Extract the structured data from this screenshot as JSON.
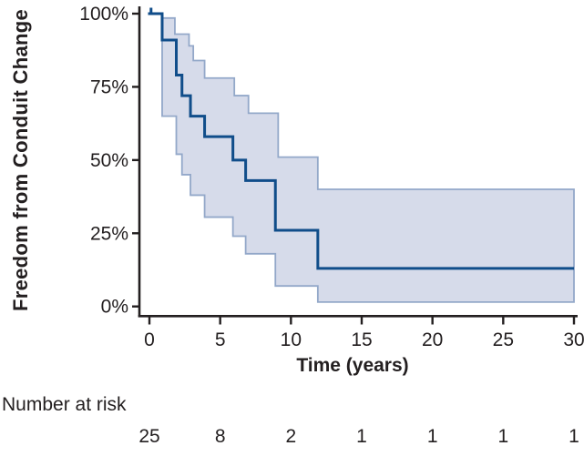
{
  "figure": {
    "background": "#ffffff",
    "text_color": "#231f20",
    "axis_color": "#231f20"
  },
  "chart_data": {
    "type": "line",
    "subtype": "kaplan_meier_step_curve_with_confidence_band",
    "title": "",
    "ylabel": "Freedom from Conduit Change",
    "xlabel": "Time (years)",
    "xlim": [
      0,
      30
    ],
    "ylim": [
      0,
      100
    ],
    "x_ticks": [
      0,
      5,
      10,
      15,
      20,
      25,
      30
    ],
    "x_tick_labels": [
      "0",
      "5",
      "10",
      "15",
      "20",
      "25",
      "30"
    ],
    "y_ticks": [
      100,
      75,
      50,
      25,
      0
    ],
    "y_tick_labels": [
      "100%",
      "75%",
      "50%",
      "25%",
      "0%"
    ],
    "grid": false,
    "legend": "none",
    "series": [
      {
        "name": "freedom-from-conduit-change-estimate",
        "role": "estimate",
        "color": "#104d8a",
        "line_width": 3,
        "start_value": 100,
        "event_times": [
          0.9,
          1.9,
          2.3,
          2.9,
          3.9,
          5.9,
          6.8,
          8.9,
          11.9
        ],
        "values_after_event": [
          91,
          79,
          72,
          65,
          58,
          50,
          43,
          26,
          13
        ],
        "end_time": 30
      },
      {
        "name": "confidence-band-upper",
        "role": "ci_upper",
        "color": "#93a8c9",
        "line_width": 1.8,
        "start_value": 100,
        "event_times": [
          0.9,
          1.8,
          2.8,
          3.1,
          3.9,
          6.0,
          7.0,
          9.1,
          11.9
        ],
        "values_after_event": [
          98.5,
          93,
          89,
          84,
          78,
          72,
          66,
          51,
          40
        ],
        "end_time": 30
      },
      {
        "name": "confidence-band-lower",
        "role": "ci_lower",
        "color": "#93a8c9",
        "line_width": 1.8,
        "start_value": 100,
        "event_times": [
          0.9,
          1.9,
          2.3,
          2.9,
          3.9,
          5.9,
          6.8,
          8.9,
          11.9
        ],
        "values_after_event": [
          65,
          52,
          45,
          38,
          30.5,
          24,
          18,
          7,
          1.5
        ],
        "end_time": 30
      }
    ],
    "band": {
      "fill": "#d6dbea",
      "edge": "#93a8c9",
      "edge_width": 1.8
    },
    "censor_marks": [
      {
        "time": 0.05,
        "value": 100
      }
    ],
    "number_at_risk": {
      "label": "Number at risk",
      "times": [
        0,
        5,
        10,
        15,
        20,
        25,
        30
      ],
      "values": [
        "25",
        "8",
        "2",
        "1",
        "1",
        "1",
        "1"
      ]
    }
  }
}
